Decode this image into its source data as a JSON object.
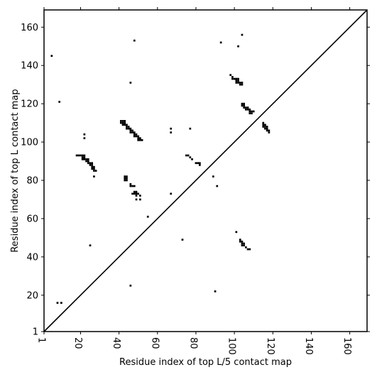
{
  "chart_data": {
    "type": "scatter",
    "title": "",
    "xlabel": "Residue index of top L/5 contact map",
    "ylabel": "Residue index of top L contact map",
    "xlim": [
      1,
      169
    ],
    "ylim": [
      1,
      169
    ],
    "x_ticks": [
      1,
      20,
      40,
      60,
      80,
      100,
      120,
      140,
      160
    ],
    "y_ticks": [
      1,
      20,
      40,
      60,
      80,
      100,
      120,
      140,
      160
    ],
    "grid": false,
    "diagonal": {
      "from": [
        1,
        1
      ],
      "to": [
        169,
        169
      ]
    },
    "marker": {
      "shape": "square",
      "color": "#000000"
    },
    "points": [
      [
        5,
        145
      ],
      [
        9,
        121
      ],
      [
        48,
        153
      ],
      [
        93,
        152
      ],
      [
        102,
        150
      ],
      [
        104,
        156
      ],
      [
        46,
        131
      ],
      [
        98,
        135
      ],
      [
        99,
        134
      ],
      [
        99,
        133
      ],
      [
        100,
        133
      ],
      [
        101,
        133
      ],
      [
        102,
        133
      ],
      [
        101,
        132
      ],
      [
        102,
        132
      ],
      [
        103,
        131
      ],
      [
        104,
        131
      ],
      [
        101,
        131
      ],
      [
        102,
        131
      ],
      [
        103,
        130
      ],
      [
        104,
        130
      ],
      [
        104,
        120
      ],
      [
        105,
        120
      ],
      [
        104,
        119
      ],
      [
        105,
        119
      ],
      [
        106,
        118
      ],
      [
        107,
        118
      ],
      [
        105,
        118
      ],
      [
        108,
        117
      ],
      [
        106,
        117
      ],
      [
        107,
        117
      ],
      [
        108,
        116
      ],
      [
        109,
        116
      ],
      [
        108,
        115
      ],
      [
        109,
        115
      ],
      [
        110,
        116
      ],
      [
        41,
        111
      ],
      [
        42,
        111
      ],
      [
        43,
        111
      ],
      [
        41,
        110
      ],
      [
        42,
        110
      ],
      [
        43,
        110
      ],
      [
        42,
        109
      ],
      [
        43,
        109
      ],
      [
        44,
        109
      ],
      [
        44,
        108
      ],
      [
        45,
        108
      ],
      [
        44,
        107
      ],
      [
        45,
        107
      ],
      [
        46,
        107
      ],
      [
        46,
        106
      ],
      [
        47,
        106
      ],
      [
        46,
        105
      ],
      [
        47,
        105
      ],
      [
        48,
        105
      ],
      [
        48,
        104
      ],
      [
        49,
        104
      ],
      [
        48,
        103
      ],
      [
        49,
        103
      ],
      [
        50,
        103
      ],
      [
        50,
        102
      ],
      [
        51,
        102
      ],
      [
        50,
        101
      ],
      [
        51,
        101
      ],
      [
        52,
        101
      ],
      [
        115,
        110
      ],
      [
        115,
        109
      ],
      [
        116,
        109
      ],
      [
        115,
        108
      ],
      [
        116,
        108
      ],
      [
        117,
        108
      ],
      [
        116,
        107
      ],
      [
        117,
        107
      ],
      [
        117,
        106
      ],
      [
        118,
        106
      ],
      [
        118,
        105
      ],
      [
        22,
        104
      ],
      [
        22,
        102
      ],
      [
        67,
        107
      ],
      [
        67,
        105
      ],
      [
        77,
        107
      ],
      [
        18,
        93
      ],
      [
        19,
        93
      ],
      [
        20,
        93
      ],
      [
        21,
        93
      ],
      [
        22,
        93
      ],
      [
        21,
        92
      ],
      [
        22,
        92
      ],
      [
        21,
        91
      ],
      [
        22,
        91
      ],
      [
        23,
        91
      ],
      [
        24,
        91
      ],
      [
        23,
        90
      ],
      [
        24,
        90
      ],
      [
        24,
        89
      ],
      [
        25,
        89
      ],
      [
        26,
        89
      ],
      [
        25,
        88
      ],
      [
        26,
        88
      ],
      [
        26,
        87
      ],
      [
        27,
        87
      ],
      [
        26,
        86
      ],
      [
        27,
        86
      ],
      [
        27,
        85
      ],
      [
        28,
        85
      ],
      [
        27,
        82
      ],
      [
        75,
        93
      ],
      [
        76,
        93
      ],
      [
        77,
        92
      ],
      [
        78,
        91
      ],
      [
        80,
        89
      ],
      [
        81,
        89
      ],
      [
        82,
        89
      ],
      [
        82,
        88
      ],
      [
        89,
        82
      ],
      [
        91,
        77
      ],
      [
        43,
        82
      ],
      [
        44,
        82
      ],
      [
        43,
        81
      ],
      [
        44,
        81
      ],
      [
        43,
        80
      ],
      [
        44,
        80
      ],
      [
        46,
        78
      ],
      [
        46,
        77
      ],
      [
        47,
        77
      ],
      [
        48,
        77
      ],
      [
        48,
        74
      ],
      [
        49,
        74
      ],
      [
        47,
        73
      ],
      [
        48,
        73
      ],
      [
        49,
        73
      ],
      [
        50,
        73
      ],
      [
        49,
        72
      ],
      [
        51,
        72
      ],
      [
        49,
        70
      ],
      [
        51,
        70
      ],
      [
        67,
        73
      ],
      [
        55,
        61
      ],
      [
        73,
        49
      ],
      [
        101,
        53
      ],
      [
        103,
        49
      ],
      [
        103,
        48
      ],
      [
        104,
        48
      ],
      [
        104,
        47
      ],
      [
        105,
        47
      ],
      [
        104,
        46
      ],
      [
        105,
        46
      ],
      [
        106,
        45
      ],
      [
        107,
        44
      ],
      [
        108,
        44
      ],
      [
        25,
        46
      ],
      [
        46,
        25
      ],
      [
        90,
        22
      ],
      [
        8,
        16
      ],
      [
        10,
        16
      ]
    ]
  }
}
